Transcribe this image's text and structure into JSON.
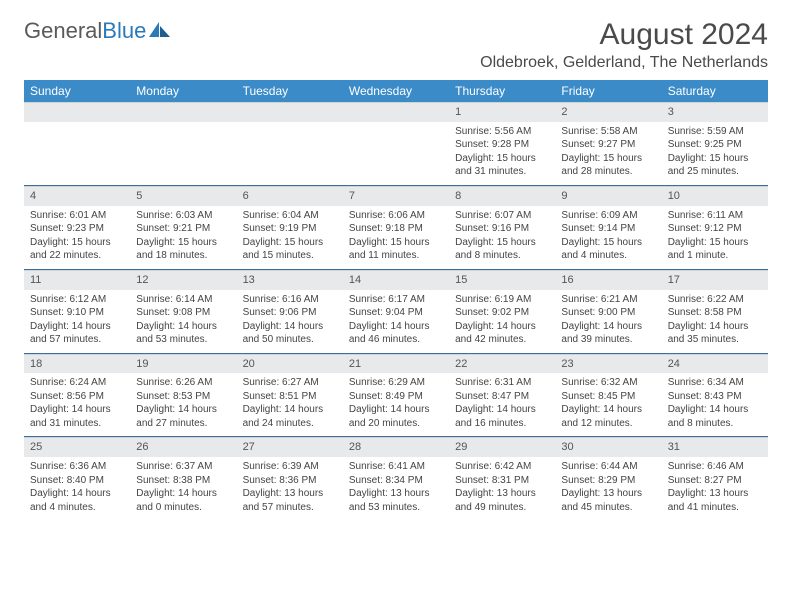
{
  "logo": {
    "text1": "General",
    "text2": "Blue"
  },
  "title": "August 2024",
  "location": "Oldebroek, Gelderland, The Netherlands",
  "colors": {
    "header_bg": "#3b8bc9",
    "header_text": "#ffffff",
    "daynum_bg": "#e7e9ea",
    "row_border": "#3b6fa0",
    "text": "#444444",
    "logo_gray": "#5a5a5a",
    "logo_blue": "#2a7ab9"
  },
  "day_headers": [
    "Sunday",
    "Monday",
    "Tuesday",
    "Wednesday",
    "Thursday",
    "Friday",
    "Saturday"
  ],
  "weeks": [
    [
      null,
      null,
      null,
      null,
      {
        "n": "1",
        "sr": "5:56 AM",
        "ss": "9:28 PM",
        "dl": "15 hours and 31 minutes."
      },
      {
        "n": "2",
        "sr": "5:58 AM",
        "ss": "9:27 PM",
        "dl": "15 hours and 28 minutes."
      },
      {
        "n": "3",
        "sr": "5:59 AM",
        "ss": "9:25 PM",
        "dl": "15 hours and 25 minutes."
      }
    ],
    [
      {
        "n": "4",
        "sr": "6:01 AM",
        "ss": "9:23 PM",
        "dl": "15 hours and 22 minutes."
      },
      {
        "n": "5",
        "sr": "6:03 AM",
        "ss": "9:21 PM",
        "dl": "15 hours and 18 minutes."
      },
      {
        "n": "6",
        "sr": "6:04 AM",
        "ss": "9:19 PM",
        "dl": "15 hours and 15 minutes."
      },
      {
        "n": "7",
        "sr": "6:06 AM",
        "ss": "9:18 PM",
        "dl": "15 hours and 11 minutes."
      },
      {
        "n": "8",
        "sr": "6:07 AM",
        "ss": "9:16 PM",
        "dl": "15 hours and 8 minutes."
      },
      {
        "n": "9",
        "sr": "6:09 AM",
        "ss": "9:14 PM",
        "dl": "15 hours and 4 minutes."
      },
      {
        "n": "10",
        "sr": "6:11 AM",
        "ss": "9:12 PM",
        "dl": "15 hours and 1 minute."
      }
    ],
    [
      {
        "n": "11",
        "sr": "6:12 AM",
        "ss": "9:10 PM",
        "dl": "14 hours and 57 minutes."
      },
      {
        "n": "12",
        "sr": "6:14 AM",
        "ss": "9:08 PM",
        "dl": "14 hours and 53 minutes."
      },
      {
        "n": "13",
        "sr": "6:16 AM",
        "ss": "9:06 PM",
        "dl": "14 hours and 50 minutes."
      },
      {
        "n": "14",
        "sr": "6:17 AM",
        "ss": "9:04 PM",
        "dl": "14 hours and 46 minutes."
      },
      {
        "n": "15",
        "sr": "6:19 AM",
        "ss": "9:02 PM",
        "dl": "14 hours and 42 minutes."
      },
      {
        "n": "16",
        "sr": "6:21 AM",
        "ss": "9:00 PM",
        "dl": "14 hours and 39 minutes."
      },
      {
        "n": "17",
        "sr": "6:22 AM",
        "ss": "8:58 PM",
        "dl": "14 hours and 35 minutes."
      }
    ],
    [
      {
        "n": "18",
        "sr": "6:24 AM",
        "ss": "8:56 PM",
        "dl": "14 hours and 31 minutes."
      },
      {
        "n": "19",
        "sr": "6:26 AM",
        "ss": "8:53 PM",
        "dl": "14 hours and 27 minutes."
      },
      {
        "n": "20",
        "sr": "6:27 AM",
        "ss": "8:51 PM",
        "dl": "14 hours and 24 minutes."
      },
      {
        "n": "21",
        "sr": "6:29 AM",
        "ss": "8:49 PM",
        "dl": "14 hours and 20 minutes."
      },
      {
        "n": "22",
        "sr": "6:31 AM",
        "ss": "8:47 PM",
        "dl": "14 hours and 16 minutes."
      },
      {
        "n": "23",
        "sr": "6:32 AM",
        "ss": "8:45 PM",
        "dl": "14 hours and 12 minutes."
      },
      {
        "n": "24",
        "sr": "6:34 AM",
        "ss": "8:43 PM",
        "dl": "14 hours and 8 minutes."
      }
    ],
    [
      {
        "n": "25",
        "sr": "6:36 AM",
        "ss": "8:40 PM",
        "dl": "14 hours and 4 minutes."
      },
      {
        "n": "26",
        "sr": "6:37 AM",
        "ss": "8:38 PM",
        "dl": "14 hours and 0 minutes."
      },
      {
        "n": "27",
        "sr": "6:39 AM",
        "ss": "8:36 PM",
        "dl": "13 hours and 57 minutes."
      },
      {
        "n": "28",
        "sr": "6:41 AM",
        "ss": "8:34 PM",
        "dl": "13 hours and 53 minutes."
      },
      {
        "n": "29",
        "sr": "6:42 AM",
        "ss": "8:31 PM",
        "dl": "13 hours and 49 minutes."
      },
      {
        "n": "30",
        "sr": "6:44 AM",
        "ss": "8:29 PM",
        "dl": "13 hours and 45 minutes."
      },
      {
        "n": "31",
        "sr": "6:46 AM",
        "ss": "8:27 PM",
        "dl": "13 hours and 41 minutes."
      }
    ]
  ],
  "labels": {
    "sunrise": "Sunrise:",
    "sunset": "Sunset:",
    "daylight": "Daylight:"
  }
}
